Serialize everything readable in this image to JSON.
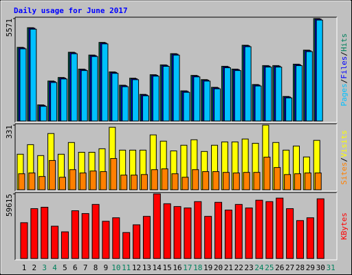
{
  "chart_data": [
    {
      "type": "bar",
      "title": "Daily usage for June 2017",
      "title_color": "#0000ff",
      "ylim": [
        0,
        5571
      ],
      "yticks": [
        5571
      ],
      "legend_separator": "/",
      "series": [
        {
          "name": "Hits",
          "color": "#00805c",
          "values": [
            4006,
            5075,
            878,
            2175,
            2366,
            3739,
            2824,
            3587,
            4274,
            2671,
            1946,
            2328,
            1450,
            2518,
            3053,
            3663,
            1641,
            2480,
            2251,
            1832,
            2976,
            2824,
            4121,
            1984,
            3014,
            3014,
            1336,
            3091,
            3854,
            5571,
            null
          ]
        },
        {
          "name": "Files",
          "color": "#0000ff",
          "values": [
            3976,
            5045,
            848,
            2145,
            2336,
            3709,
            2794,
            3557,
            4244,
            2641,
            1916,
            2298,
            1420,
            2488,
            3023,
            3633,
            1611,
            2450,
            2221,
            1802,
            2946,
            2794,
            4091,
            1954,
            2984,
            2984,
            1306,
            3061,
            3824,
            5541,
            null
          ]
        },
        {
          "name": "Pages",
          "color": "#00c0ff",
          "values": [
            3926,
            4995,
            798,
            2095,
            2286,
            3659,
            2744,
            3507,
            4194,
            2591,
            1866,
            2248,
            1370,
            2438,
            2973,
            3583,
            1561,
            2400,
            2171,
            1752,
            2896,
            2744,
            4041,
            1904,
            2934,
            2934,
            1256,
            3011,
            3774,
            5491,
            null
          ]
        }
      ]
    },
    {
      "type": "bar",
      "ylim": [
        0,
        331
      ],
      "yticks": [
        331
      ],
      "legend_separator": "/",
      "series": [
        {
          "name": "Visits",
          "color": "#ffff00",
          "values": [
            182,
            231,
            175,
            288,
            182,
            242,
            192,
            192,
            210,
            320,
            203,
            203,
            203,
            281,
            249,
            199,
            228,
            256,
            196,
            228,
            245,
            245,
            260,
            238,
            331,
            242,
            203,
            224,
            168,
            253,
            null
          ]
        },
        {
          "name": "Sites",
          "color": "#ff8000",
          "values": [
            82,
            86,
            68,
            150,
            64,
            103,
            86,
            96,
            93,
            160,
            75,
            75,
            78,
            103,
            107,
            82,
            64,
            103,
            93,
            93,
            89,
            86,
            89,
            89,
            167,
            114,
            78,
            82,
            86,
            86,
            null
          ]
        }
      ]
    },
    {
      "type": "bar",
      "ylim": [
        0,
        59615
      ],
      "yticks": [
        59615
      ],
      "series": [
        {
          "name": "KBytes",
          "color": "#ff0000",
          "values": [
            33050,
            46010,
            47300,
            29810,
            24620,
            44060,
            41470,
            49900,
            34350,
            37590,
            23980,
            31100,
            38880,
            59615,
            50540,
            47950,
            46660,
            52490,
            38880,
            51840,
            44710,
            49900,
            46660,
            53790,
            52490,
            55730,
            46010,
            35000,
            37590,
            55080,
            null
          ]
        }
      ],
      "categories": [
        "1",
        "2",
        "3",
        "4",
        "5",
        "6",
        "7",
        "8",
        "9",
        "10",
        "11",
        "12",
        "13",
        "14",
        "15",
        "16",
        "17",
        "18",
        "19",
        "20",
        "21",
        "22",
        "23",
        "24",
        "25",
        "26",
        "27",
        "28",
        "29",
        "30",
        "31"
      ],
      "weekday_color": "#000000",
      "weekend_color": "#00805c",
      "weekend": [
        false,
        false,
        true,
        true,
        false,
        false,
        false,
        false,
        false,
        true,
        true,
        false,
        false,
        false,
        false,
        false,
        true,
        true,
        false,
        false,
        false,
        false,
        false,
        true,
        true,
        false,
        false,
        false,
        false,
        false,
        true
      ]
    }
  ]
}
